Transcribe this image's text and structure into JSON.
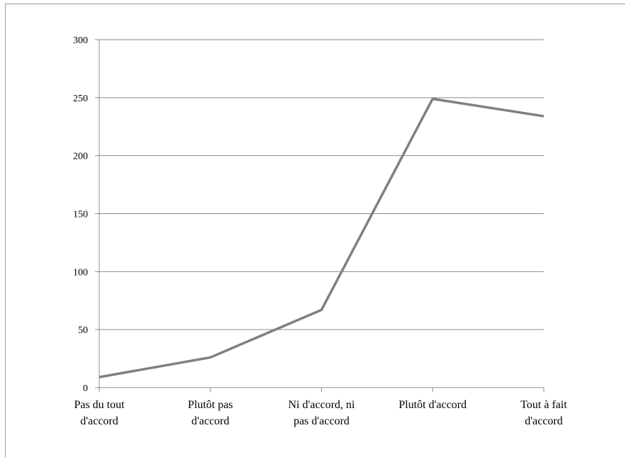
{
  "chart_data": {
    "type": "line",
    "categories": [
      [
        "Pas du tout",
        "d'accord"
      ],
      [
        "Plutôt pas",
        "d'accord"
      ],
      [
        "Ni d'accord, ni",
        "pas d'accord"
      ],
      [
        "Plutôt d'accord"
      ],
      [
        "Tout à fait",
        "d'accord"
      ]
    ],
    "series": [
      {
        "values": [
          9,
          26,
          67,
          249,
          234
        ],
        "color": "#808080"
      }
    ],
    "ylim": [
      0,
      300
    ],
    "yticks": [
      0,
      50,
      100,
      150,
      200,
      250,
      300
    ],
    "ytick_labels": [
      "0",
      "50",
      "100",
      "150",
      "200",
      "250",
      "300"
    ],
    "grid": true,
    "legend": "none",
    "gridline_color": "#8c8c8c"
  }
}
